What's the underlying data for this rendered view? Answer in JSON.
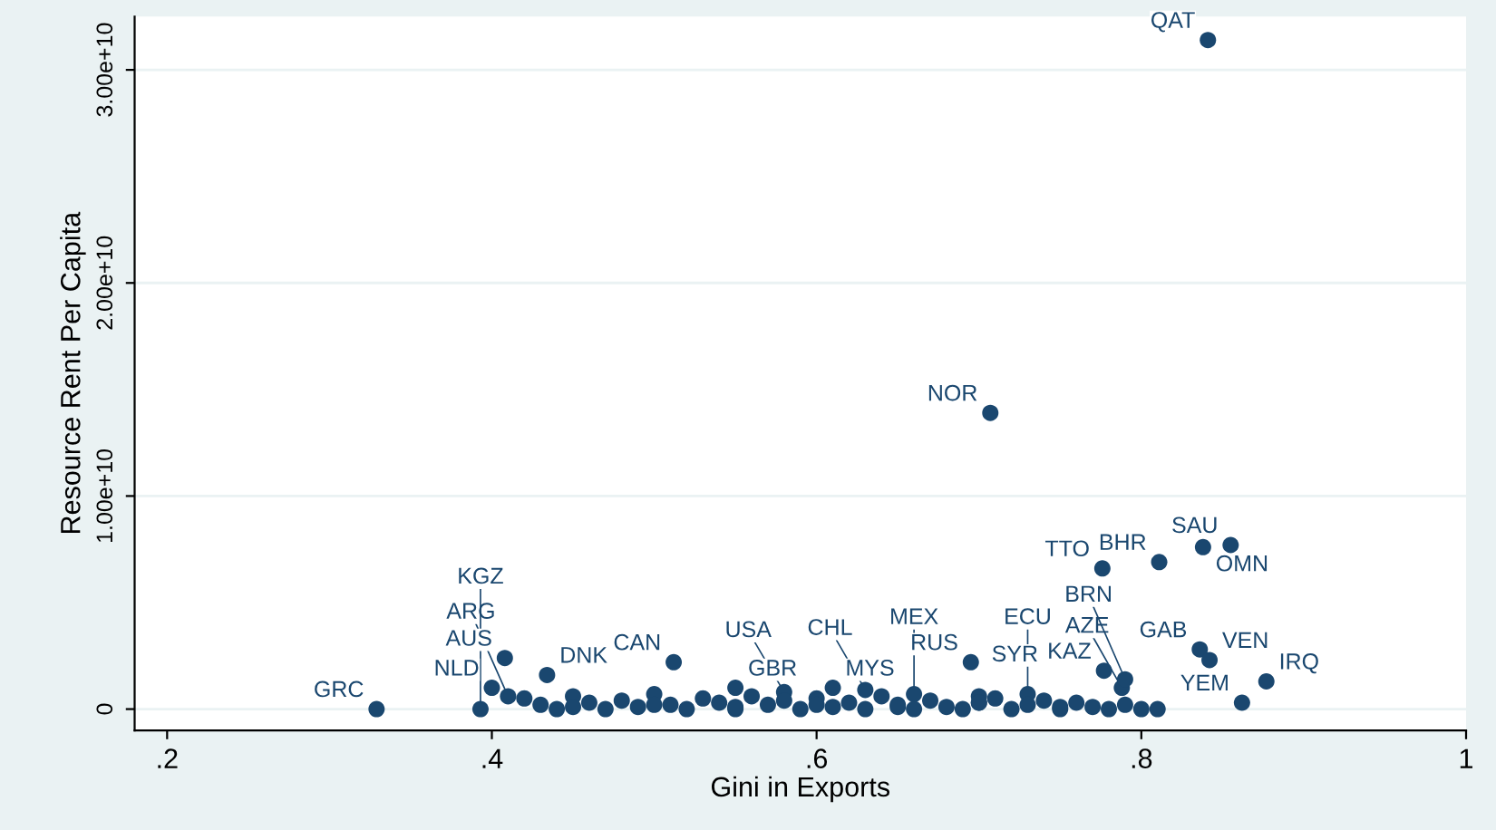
{
  "chart_data": {
    "type": "scatter",
    "xlabel": "Gini in Exports",
    "ylabel": "Resource Rent Per Capita",
    "xlim": [
      0.18,
      1.0
    ],
    "ylim": [
      -1000000000.0,
      32500000000.0
    ],
    "xticks": [
      {
        "value": 0.2,
        "label": ".2"
      },
      {
        "value": 0.4,
        "label": ".4"
      },
      {
        "value": 0.6,
        "label": ".6"
      },
      {
        "value": 0.8,
        "label": ".8"
      },
      1
    ],
    "yticks": [
      0,
      {
        "value": 10000000000.0,
        "label": "1.00e+10"
      },
      {
        "value": 20000000000.0,
        "label": "2.00e+10"
      },
      {
        "value": 30000000000.0,
        "label": "3.00e+10"
      }
    ],
    "grid": "y",
    "marker": "circle",
    "series": [
      {
        "color": "#1a476f",
        "x": [
          0.841,
          0.707,
          0.776,
          0.811,
          0.838,
          0.855,
          0.836,
          0.842,
          0.877,
          0.862,
          0.695,
          0.777,
          0.788,
          0.79,
          0.408,
          0.434,
          0.4,
          0.41,
          0.512,
          0.329,
          0.393,
          0.55,
          0.58,
          0.61,
          0.63,
          0.66,
          0.7,
          0.73,
          0.42,
          0.43,
          0.44,
          0.45,
          0.46,
          0.47,
          0.48,
          0.49,
          0.5,
          0.51,
          0.52,
          0.53,
          0.54,
          0.55,
          0.56,
          0.57,
          0.58,
          0.59,
          0.6,
          0.61,
          0.62,
          0.63,
          0.64,
          0.65,
          0.66,
          0.67,
          0.68,
          0.69,
          0.7,
          0.71,
          0.72,
          0.73,
          0.74,
          0.75,
          0.76,
          0.77,
          0.78,
          0.79,
          0.8,
          0.81,
          0.45,
          0.5,
          0.55,
          0.6,
          0.65,
          0.7,
          0.75
        ],
        "values": [
          31400000000.0,
          13900000000.0,
          6600000000.0,
          6900000000.0,
          7600000000.0,
          7700000000.0,
          2800000000.0,
          2300000000.0,
          1300000000.0,
          300000000.0,
          2200000000.0,
          1800000000.0,
          1000000000.0,
          1400000000.0,
          2400000000.0,
          1600000000.0,
          1000000000.0,
          600000000.0,
          2200000000.0,
          0,
          0,
          1000000000.0,
          800000000.0,
          1000000000.0,
          900000000.0,
          700000000.0,
          600000000.0,
          700000000.0,
          500000000.0,
          200000000.0,
          0,
          600000000.0,
          300000000.0,
          0,
          400000000.0,
          100000000.0,
          700000000.0,
          200000000.0,
          0,
          500000000.0,
          300000000.0,
          0,
          600000000.0,
          200000000.0,
          400000000.0,
          0,
          500000000.0,
          100000000.0,
          300000000.0,
          0,
          600000000.0,
          200000000.0,
          0,
          400000000.0,
          100000000.0,
          0,
          300000000.0,
          500000000.0,
          0,
          200000000.0,
          400000000.0,
          0,
          300000000.0,
          100000000.0,
          0,
          200000000.0,
          0,
          0,
          100000000.0,
          200000000.0,
          100000000.0,
          200000000.0,
          100000000.0,
          300000000.0,
          100000000.0
        ]
      }
    ],
    "annotations": [
      {
        "text": "QAT",
        "x": 0.841,
        "y": 31400000000.0
      },
      {
        "text": "NOR",
        "x": 0.707,
        "y": 13900000000.0
      },
      {
        "text": "TTO",
        "x": 0.776,
        "y": 6600000000.0
      },
      {
        "text": "BHR",
        "x": 0.811,
        "y": 6900000000.0
      },
      {
        "text": "OMN",
        "x": 0.838,
        "y": 7600000000.0
      },
      {
        "text": "SAU",
        "x": 0.855,
        "y": 7700000000.0
      },
      {
        "text": "GAB",
        "x": 0.836,
        "y": 2800000000.0
      },
      {
        "text": "VEN",
        "x": 0.842,
        "y": 2300000000.0
      },
      {
        "text": "IRQ",
        "x": 0.877,
        "y": 1300000000.0
      },
      {
        "text": "YEM",
        "x": 0.862,
        "y": 300000000.0
      },
      {
        "text": "RUS",
        "x": 0.695,
        "y": 2200000000.0
      },
      {
        "text": "KAZ",
        "x": 0.777,
        "y": 1800000000.0
      },
      {
        "text": "AZE",
        "x": 0.788,
        "y": 1000000000.0
      },
      {
        "text": "BRN",
        "x": 0.79,
        "y": 1400000000.0
      },
      {
        "text": "AUS",
        "x": 0.408,
        "y": 2400000000.0
      },
      {
        "text": "DNK",
        "x": 0.434,
        "y": 1600000000.0
      },
      {
        "text": "NLD",
        "x": 0.4,
        "y": 1000000000.0
      },
      {
        "text": "ARG",
        "x": 0.41,
        "y": 600000000.0
      },
      {
        "text": "CAN",
        "x": 0.512,
        "y": 2200000000.0
      },
      {
        "text": "GRC",
        "x": 0.329,
        "y": 0
      },
      {
        "text": "KGZ",
        "x": 0.393,
        "y": 0
      },
      {
        "text": "GBR",
        "x": 0.55,
        "y": 1000000000.0
      },
      {
        "text": "USA",
        "x": 0.58,
        "y": 800000000.0
      },
      {
        "text": "MYS",
        "x": 0.61,
        "y": 1000000000.0
      },
      {
        "text": "CHL",
        "x": 0.63,
        "y": 900000000.0
      },
      {
        "text": "MEX",
        "x": 0.66,
        "y": 700000000.0
      },
      {
        "text": "SYR",
        "x": 0.7,
        "y": 600000000.0
      },
      {
        "text": "ECU",
        "x": 0.73,
        "y": 700000000.0
      }
    ]
  }
}
